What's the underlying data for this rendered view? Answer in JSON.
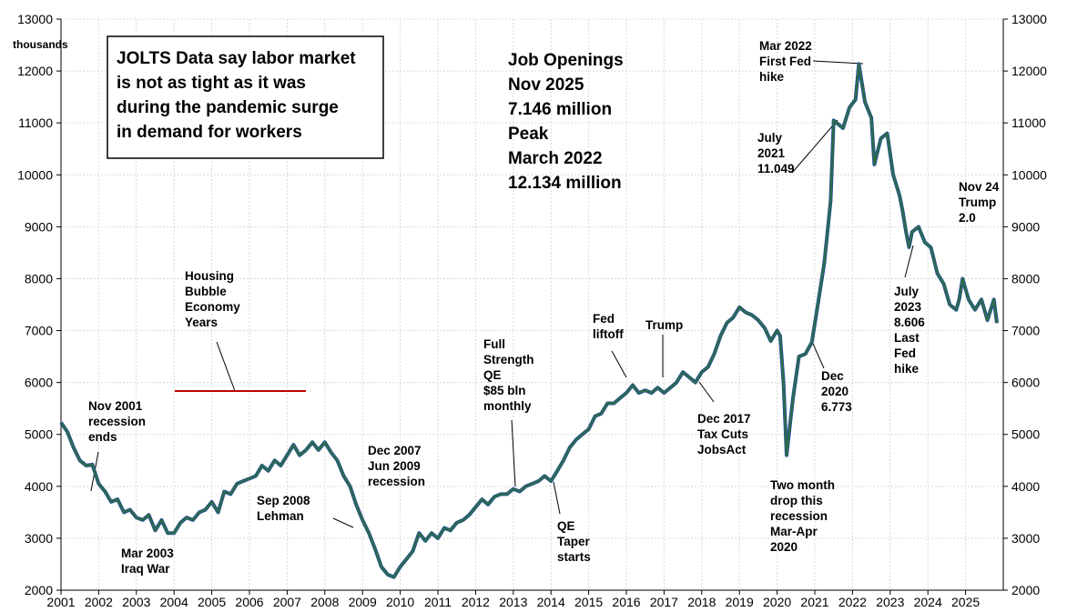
{
  "chart_data": {
    "type": "line",
    "y_label": "thousands",
    "xlim": [
      2001,
      2026
    ],
    "xticks": [
      2001,
      2002,
      2003,
      2004,
      2005,
      2006,
      2007,
      2008,
      2009,
      2010,
      2011,
      2012,
      2013,
      2014,
      2015,
      2016,
      2017,
      2018,
      2019,
      2020,
      2021,
      2022,
      2023,
      2024,
      2025
    ],
    "ylim": [
      2000,
      13000
    ],
    "yticks": [
      2000,
      3000,
      4000,
      5000,
      6000,
      7000,
      8000,
      9000,
      10000,
      11000,
      12000,
      13000
    ],
    "grid": true,
    "series": [
      {
        "color": "#2e6a4c",
        "x": [
          2001.0,
          2001.17,
          2001.33,
          2001.5,
          2001.67,
          2001.83,
          2002.0,
          2002.17,
          2002.33,
          2002.5,
          2002.67,
          2002.83,
          2003.0,
          2003.17,
          2003.33,
          2003.5,
          2003.67,
          2003.83,
          2004.0,
          2004.17,
          2004.33,
          2004.5,
          2004.67,
          2004.83,
          2005.0,
          2005.17,
          2005.33,
          2005.5,
          2005.67,
          2005.83,
          2006.0,
          2006.17,
          2006.33,
          2006.5,
          2006.67,
          2006.83,
          2007.0,
          2007.17,
          2007.33,
          2007.5,
          2007.67,
          2007.83,
          2008.0,
          2008.17,
          2008.33,
          2008.5,
          2008.67,
          2008.83,
          2009.0,
          2009.17,
          2009.33,
          2009.5,
          2009.67,
          2009.83,
          2010.0,
          2010.17,
          2010.33,
          2010.5,
          2010.67,
          2010.83,
          2011.0,
          2011.17,
          2011.33,
          2011.5,
          2011.67,
          2011.83,
          2012.0,
          2012.17,
          2012.33,
          2012.5,
          2012.67,
          2012.83,
          2013.0,
          2013.17,
          2013.33,
          2013.5,
          2013.67,
          2013.83,
          2014.0,
          2014.17,
          2014.33,
          2014.5,
          2014.67,
          2014.83,
          2015.0,
          2015.17,
          2015.33,
          2015.5,
          2015.67,
          2015.83,
          2016.0,
          2016.17,
          2016.33,
          2016.5,
          2016.67,
          2016.83,
          2017.0,
          2017.17,
          2017.33,
          2017.5,
          2017.67,
          2017.83,
          2018.0,
          2018.17,
          2018.33,
          2018.5,
          2018.67,
          2018.83,
          2019.0,
          2019.17,
          2019.33,
          2019.5,
          2019.67,
          2019.83,
          2020.0,
          2020.08,
          2020.17,
          2020.25,
          2020.42,
          2020.58,
          2020.75,
          2020.92,
          2021.08,
          2021.25,
          2021.42,
          2021.5,
          2021.75,
          2021.92,
          2022.08,
          2022.17,
          2022.33,
          2022.5,
          2022.58,
          2022.75,
          2022.92,
          2023.08,
          2023.25,
          2023.33,
          2023.42,
          2023.5,
          2023.58,
          2023.75,
          2023.92,
          2024.08,
          2024.25,
          2024.42,
          2024.58,
          2024.75,
          2024.83,
          2024.92,
          2025.08,
          2025.25,
          2025.42,
          2025.58,
          2025.75,
          2025.83
        ],
        "values": [
          5230,
          5050,
          4750,
          4500,
          4400,
          4420,
          4050,
          3900,
          3700,
          3750,
          3500,
          3550,
          3400,
          3350,
          3450,
          3150,
          3350,
          3100,
          3100,
          3300,
          3400,
          3350,
          3500,
          3550,
          3700,
          3500,
          3900,
          3850,
          4050,
          4100,
          4150,
          4200,
          4400,
          4300,
          4500,
          4400,
          4600,
          4800,
          4600,
          4700,
          4850,
          4700,
          4850,
          4650,
          4500,
          4200,
          4000,
          3650,
          3350,
          3100,
          2800,
          2450,
          2300,
          2250,
          2450,
          2600,
          2750,
          3100,
          2950,
          3100,
          3000,
          3200,
          3150,
          3300,
          3350,
          3450,
          3600,
          3750,
          3650,
          3800,
          3850,
          3850,
          3950,
          3900,
          4000,
          4050,
          4100,
          4200,
          4100,
          4300,
          4500,
          4750,
          4900,
          5000,
          5100,
          5350,
          5400,
          5600,
          5600,
          5700,
          5800,
          5950,
          5800,
          5850,
          5800,
          5900,
          5800,
          5900,
          6000,
          6200,
          6100,
          6000,
          6200,
          6300,
          6550,
          6900,
          7150,
          7250,
          7450,
          7350,
          7300,
          7200,
          7050,
          6800,
          7000,
          6900,
          6000,
          4600,
          5700,
          6500,
          6550,
          6773,
          7500,
          8300,
          9500,
          11049,
          10900,
          11300,
          11450,
          12134,
          11400,
          11100,
          10200,
          10700,
          10800,
          10000,
          9600,
          9300,
          8900,
          8606,
          8900,
          9000,
          8700,
          8600,
          8100,
          7900,
          7500,
          7400,
          7600,
          8000,
          7600,
          7400,
          7600,
          7200,
          7600,
          7146
        ]
      }
    ],
    "text_box": [
      "JOLTS Data say labor market",
      "is not as tight as it was",
      "during the pandemic surge",
      "in demand for workers"
    ],
    "summary": [
      "Job Openings",
      "Nov 2025",
      "7.146 million",
      "Peak",
      "March 2022",
      "12.134 million"
    ],
    "annotations": [
      [
        "Nov 2001",
        "recession",
        "ends"
      ],
      [
        "Mar 2003",
        "Iraq War"
      ],
      [
        "Housing",
        "Bubble",
        "Economy",
        "Years"
      ],
      [
        "Sep 2008",
        "Lehman"
      ],
      [
        "Dec 2007",
        "Jun 2009",
        "recession"
      ],
      [
        "Full",
        "Strength",
        "QE",
        "$85 bln",
        "monthly"
      ],
      [
        "QE",
        "Taper",
        "starts"
      ],
      [
        "Fed",
        "liftoff"
      ],
      [
        "Trump"
      ],
      [
        "Dec 2017",
        "Tax Cuts",
        "JobsAct"
      ],
      [
        "Two month",
        "drop this",
        "recession",
        "Mar-Apr",
        "2020"
      ],
      [
        "Dec",
        "2020",
        "6.773"
      ],
      [
        "July",
        "2021",
        "11.049"
      ],
      [
        "Mar 2022",
        "First Fed",
        "hike"
      ],
      [
        "July",
        "2023",
        "8.606",
        "Last",
        "Fed",
        "hike"
      ],
      [
        "Nov 24",
        "Trump",
        "2.0"
      ]
    ]
  }
}
